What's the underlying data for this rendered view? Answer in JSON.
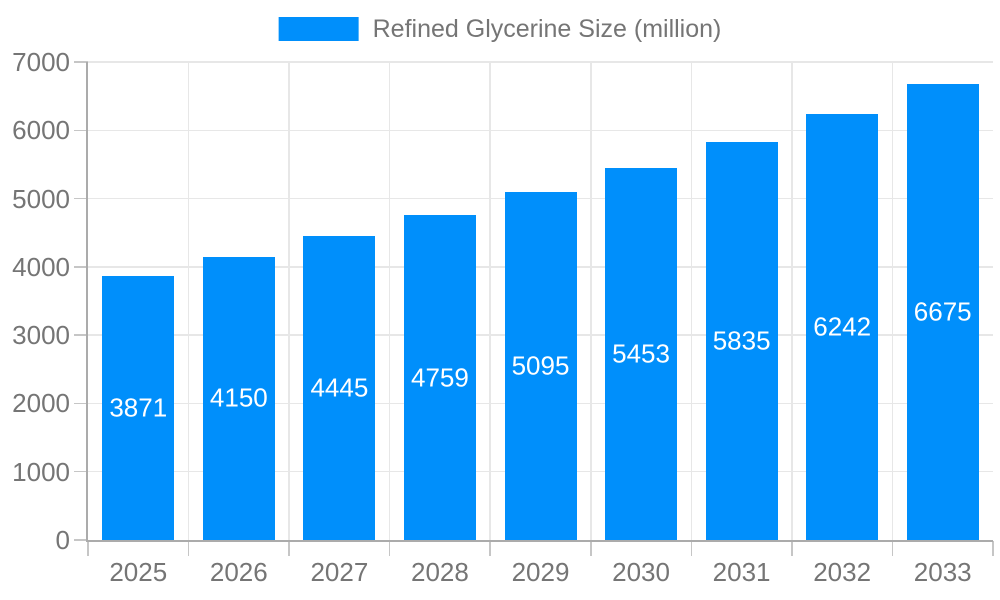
{
  "legend": {
    "label": "Refined Glycerine Size (million)"
  },
  "colors": {
    "bar": "#008FFB",
    "grid": "#e7e7e7",
    "axis": "#ababab",
    "tick": "#c6c6c6",
    "label": "#757575",
    "value_label": "#ffffff",
    "background": "#ffffff"
  },
  "chart_data": {
    "type": "bar",
    "title": "Refined Glycerine Size (million)",
    "categories": [
      "2025",
      "2026",
      "2027",
      "2028",
      "2029",
      "2030",
      "2031",
      "2032",
      "2033"
    ],
    "values": [
      3871,
      4150,
      4445,
      4759,
      5095,
      5453,
      5835,
      6242,
      6675
    ],
    "xlabel": "",
    "ylabel": "",
    "ylim": [
      0,
      7000
    ],
    "yticks": [
      0,
      1000,
      2000,
      3000,
      4000,
      5000,
      6000,
      7000
    ],
    "grid": "horizontal-and-vertical",
    "legend_position": "top",
    "value_label_position": "inside-center"
  }
}
